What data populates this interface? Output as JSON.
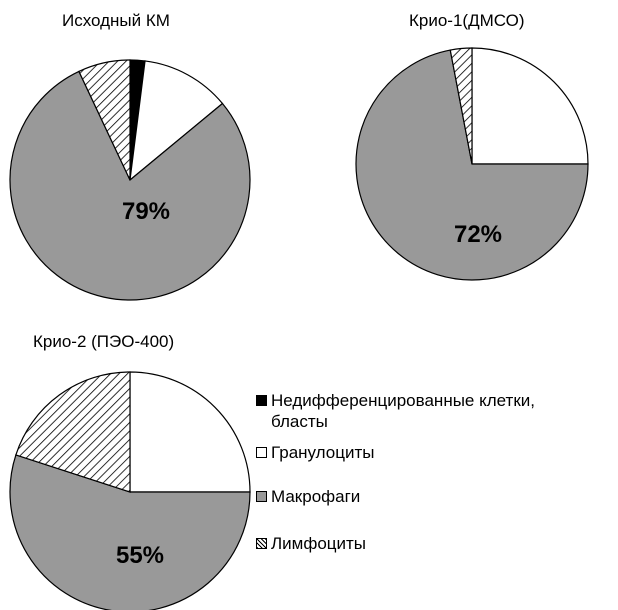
{
  "chart_data": [
    {
      "type": "pie",
      "title": "Исходный КМ",
      "slices": [
        {
          "category": "Недифференцированные клетки, бласты",
          "value": 2
        },
        {
          "category": "Гранулоциты",
          "value": 12
        },
        {
          "category": "Макрофаги",
          "value": 79
        },
        {
          "category": "Лимфоциты",
          "value": 7
        }
      ],
      "label": "79%"
    },
    {
      "type": "pie",
      "title": "Крио-1(ДМСО)",
      "slices": [
        {
          "category": "Недифференцированные клетки, бласты",
          "value": 0
        },
        {
          "category": "Гранулоциты",
          "value": 25
        },
        {
          "category": "Макрофаги",
          "value": 72
        },
        {
          "category": "Лимфоциты",
          "value": 3
        }
      ],
      "label": "72%"
    },
    {
      "type": "pie",
      "title": "Крио-2 (ПЭО-400)",
      "slices": [
        {
          "category": "Недифференцированные клетки, бласты",
          "value": 0
        },
        {
          "category": "Гранулоциты",
          "value": 25
        },
        {
          "category": "Макрофаги",
          "value": 55
        },
        {
          "category": "Лимфоциты",
          "value": 20
        }
      ],
      "label": "55%"
    }
  ],
  "legend": {
    "items": [
      {
        "label": "Недифференцированные клетки, бласты",
        "fill": "#000000"
      },
      {
        "label": "Гранулоциты",
        "fill": "#ffffff"
      },
      {
        "label": "Макрофаги",
        "fill": "#999999"
      },
      {
        "label": "Лимфоциты",
        "fill": "hatch"
      }
    ]
  },
  "colors": {
    "blasts": "#000000",
    "granulocytes": "#ffffff",
    "macrophages": "#999999",
    "lymphocytes": "hatch"
  }
}
